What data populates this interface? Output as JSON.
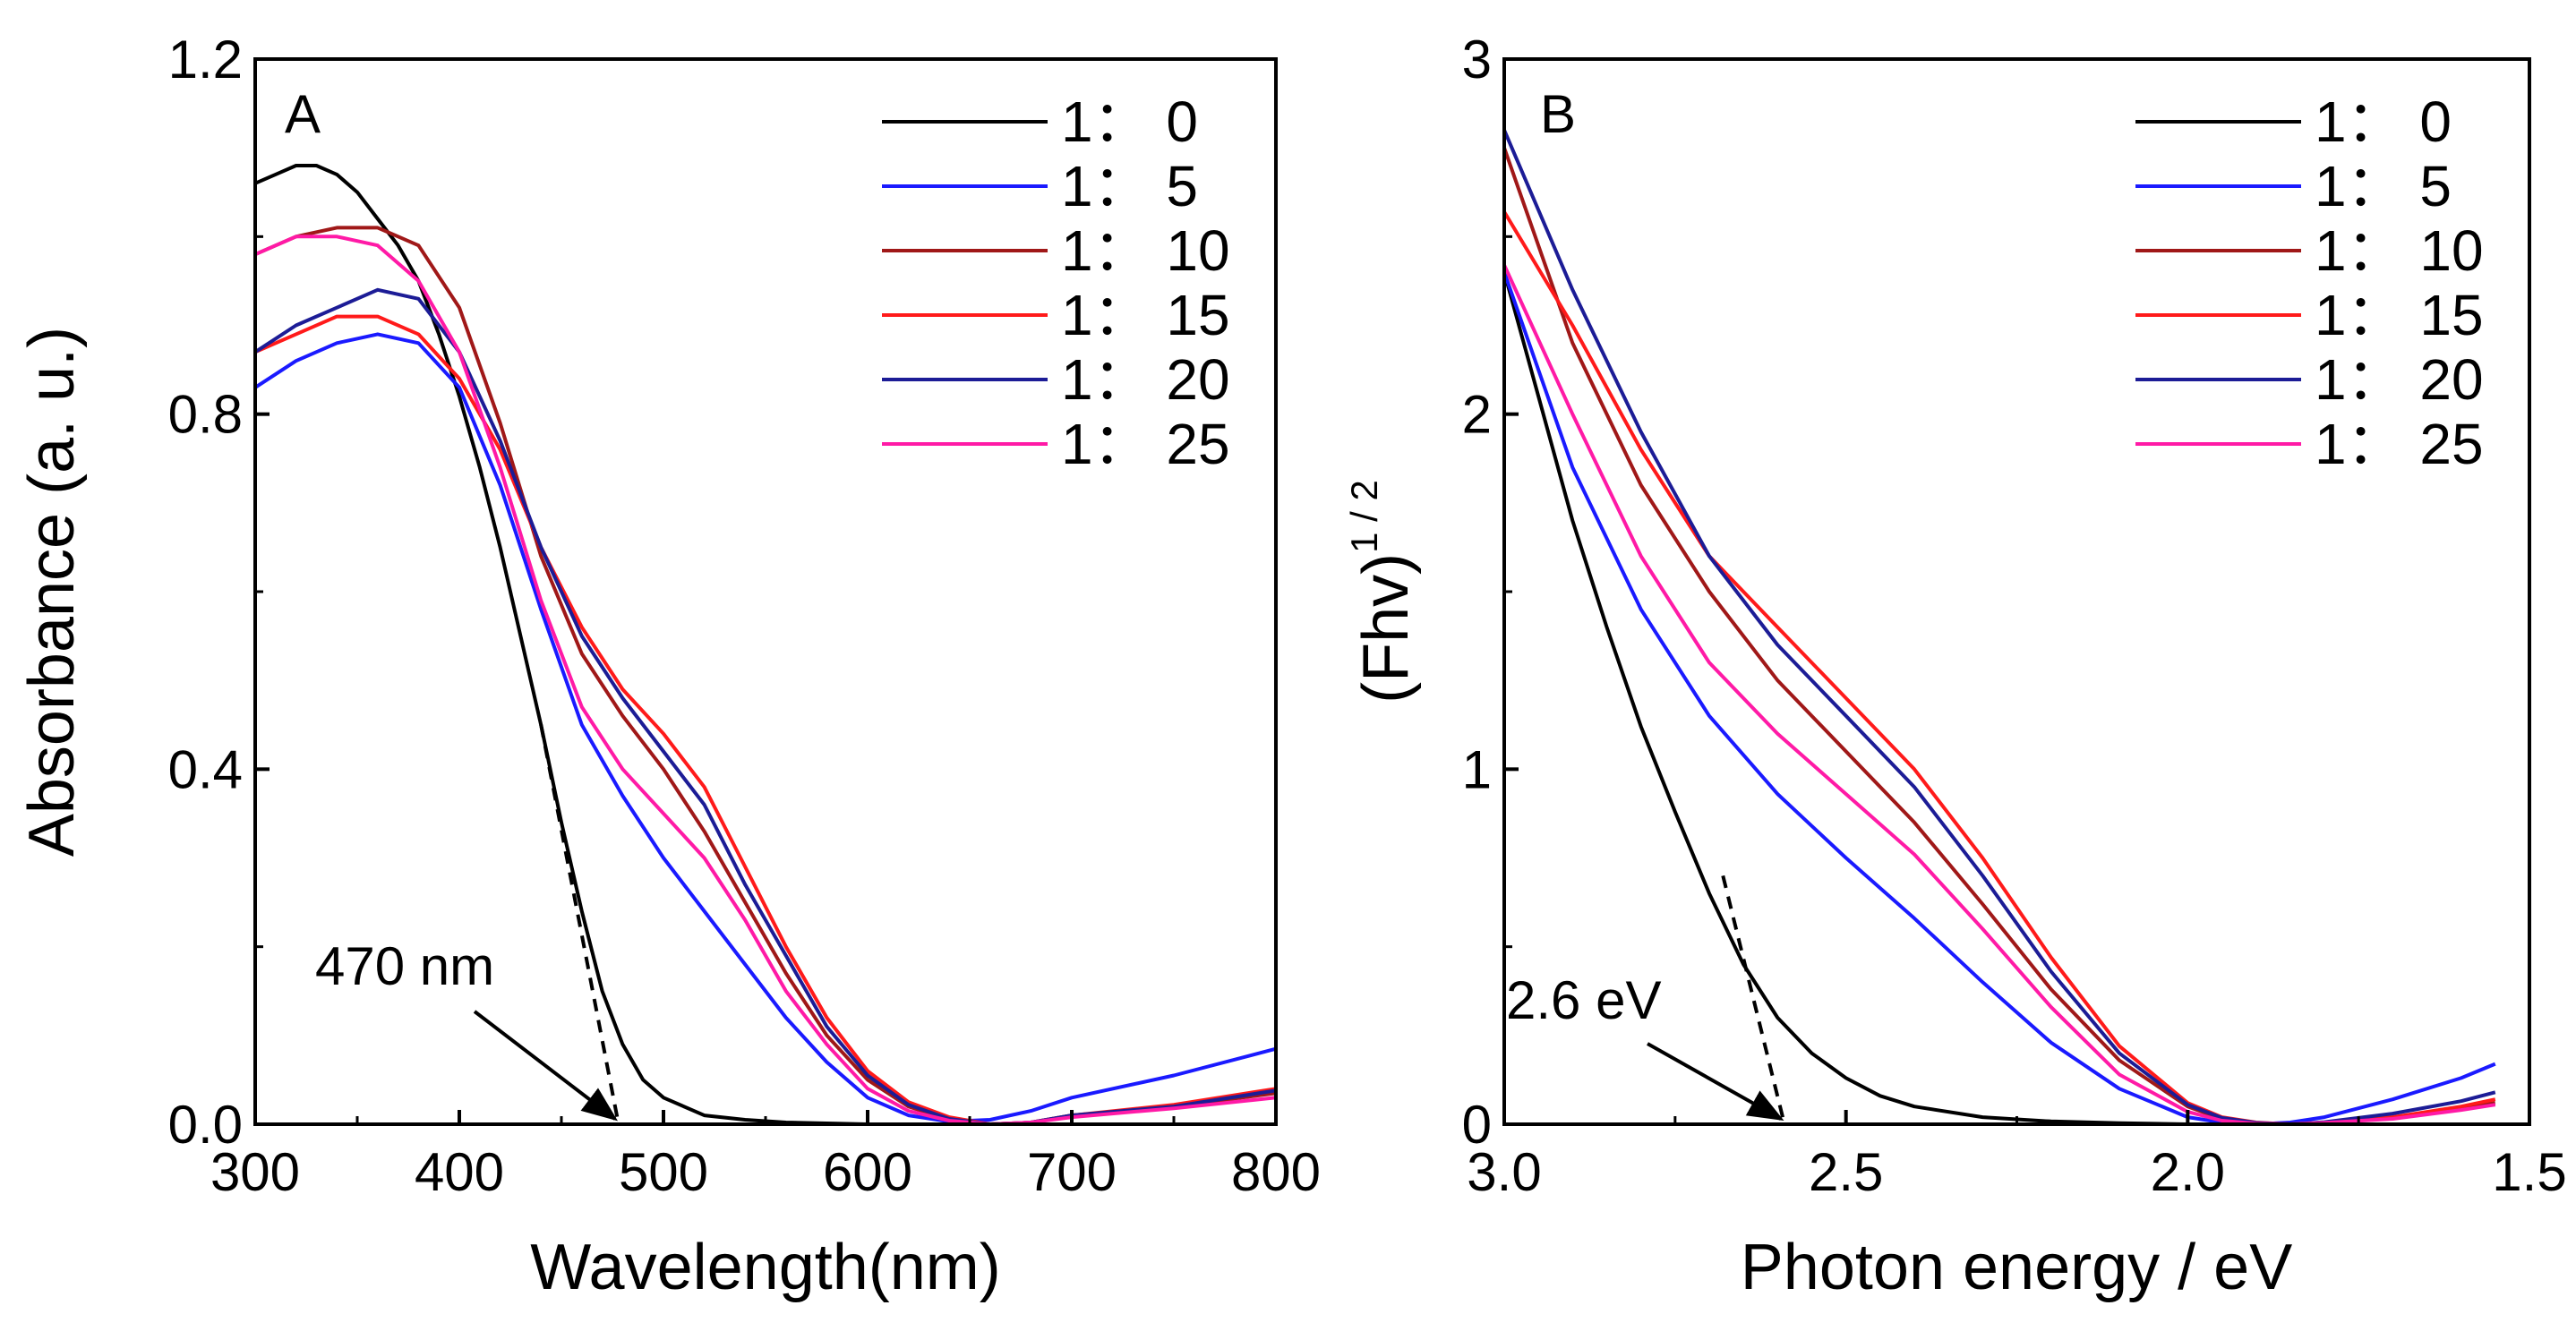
{
  "colors": {
    "1:0": "#000000",
    "1:5": "#1a1aff",
    "1:10": "#a01818",
    "1:15": "#ff1a1a",
    "1:20": "#1c1c96",
    "1:25": "#ff1aa6"
  },
  "chart_data": [
    {
      "type": "line",
      "panel_label": "A",
      "xlabel": "Wavelength(nm)",
      "ylabel": "Absorbance (a. u.)",
      "xlim": [
        300,
        800
      ],
      "ylim": [
        0,
        1.2
      ],
      "xticks": [
        300,
        400,
        500,
        600,
        700,
        800
      ],
      "xtick_labels": [
        "300",
        "400",
        "500",
        "600",
        "700",
        "800"
      ],
      "yticks": [
        0.0,
        0.4,
        0.8,
        1.2
      ],
      "ytick_labels": [
        "0.0",
        "0.4",
        "0.8",
        "1.2"
      ],
      "legend": [
        "1： 0",
        "1： 5",
        "1： 10",
        "1： 15",
        "1： 20",
        "1： 25"
      ],
      "legend_position": "top-right",
      "annotation": {
        "text": "470 nm",
        "arrow_to": [
          478,
          0.0
        ]
      },
      "tangent_line": {
        "from": [
          440,
          0.45
        ],
        "to": [
          478,
          0.0
        ]
      },
      "series": [
        {
          "name": "1： 0",
          "key": "1:0",
          "x": [
            300,
            310,
            320,
            330,
            340,
            350,
            360,
            370,
            380,
            390,
            400,
            410,
            420,
            430,
            440,
            450,
            460,
            470,
            480,
            490,
            500,
            520,
            540,
            560,
            600,
            650,
            700,
            750,
            800
          ],
          "y": [
            1.06,
            1.07,
            1.08,
            1.08,
            1.07,
            1.05,
            1.02,
            0.99,
            0.95,
            0.89,
            0.82,
            0.74,
            0.65,
            0.55,
            0.45,
            0.34,
            0.24,
            0.15,
            0.09,
            0.05,
            0.03,
            0.01,
            0.005,
            0.002,
            0.0,
            0.0,
            0.0,
            0.0,
            0.0
          ]
        },
        {
          "name": "1： 5",
          "key": "1:5",
          "x": [
            300,
            320,
            340,
            360,
            380,
            400,
            420,
            440,
            460,
            480,
            500,
            520,
            540,
            560,
            580,
            600,
            620,
            640,
            660,
            680,
            700,
            750,
            800
          ],
          "y": [
            0.83,
            0.86,
            0.88,
            0.89,
            0.88,
            0.83,
            0.72,
            0.58,
            0.45,
            0.37,
            0.3,
            0.24,
            0.18,
            0.12,
            0.07,
            0.03,
            0.01,
            0.003,
            0.005,
            0.015,
            0.03,
            0.055,
            0.085
          ]
        },
        {
          "name": "1： 10",
          "key": "1:10",
          "x": [
            300,
            320,
            340,
            360,
            380,
            400,
            420,
            440,
            460,
            480,
            500,
            520,
            540,
            560,
            580,
            600,
            620,
            640,
            660,
            680,
            700,
            750,
            800
          ],
          "y": [
            0.98,
            1.0,
            1.01,
            1.01,
            0.99,
            0.92,
            0.79,
            0.64,
            0.53,
            0.46,
            0.4,
            0.33,
            0.25,
            0.17,
            0.1,
            0.05,
            0.02,
            0.005,
            0.0,
            0.002,
            0.01,
            0.02,
            0.035
          ]
        },
        {
          "name": "1： 15",
          "key": "1:15",
          "x": [
            300,
            320,
            340,
            360,
            380,
            400,
            420,
            440,
            460,
            480,
            500,
            520,
            540,
            560,
            580,
            600,
            620,
            640,
            660,
            680,
            700,
            750,
            800
          ],
          "y": [
            0.87,
            0.89,
            0.91,
            0.91,
            0.89,
            0.84,
            0.76,
            0.65,
            0.56,
            0.49,
            0.44,
            0.38,
            0.29,
            0.2,
            0.12,
            0.06,
            0.025,
            0.008,
            0.0,
            0.002,
            0.01,
            0.022,
            0.04
          ]
        },
        {
          "name": "1： 20",
          "key": "1:20",
          "x": [
            300,
            320,
            340,
            360,
            380,
            400,
            420,
            440,
            460,
            480,
            500,
            520,
            540,
            560,
            580,
            600,
            620,
            640,
            660,
            680,
            700,
            750,
            800
          ],
          "y": [
            0.87,
            0.9,
            0.92,
            0.94,
            0.93,
            0.87,
            0.77,
            0.65,
            0.55,
            0.48,
            0.42,
            0.36,
            0.27,
            0.19,
            0.11,
            0.055,
            0.022,
            0.006,
            0.0,
            0.002,
            0.01,
            0.02,
            0.038
          ]
        },
        {
          "name": "1： 25",
          "key": "1:25",
          "x": [
            300,
            320,
            340,
            360,
            380,
            400,
            420,
            440,
            460,
            480,
            500,
            520,
            540,
            560,
            580,
            600,
            620,
            640,
            660,
            680,
            700,
            750,
            800
          ],
          "y": [
            0.98,
            1.0,
            1.0,
            0.99,
            0.95,
            0.87,
            0.74,
            0.59,
            0.47,
            0.4,
            0.35,
            0.3,
            0.23,
            0.15,
            0.09,
            0.04,
            0.015,
            0.004,
            0.0,
            0.002,
            0.008,
            0.018,
            0.03
          ]
        }
      ]
    },
    {
      "type": "line",
      "panel_label": "B",
      "xlabel": "Photon energy / eV",
      "ylabel": "(Fhv)",
      "ylabel_superscript": "1 / 2",
      "xlim": [
        3.0,
        1.5
      ],
      "ylim": [
        0,
        3
      ],
      "xticks": [
        3.0,
        2.5,
        2.0,
        1.5
      ],
      "xtick_labels": [
        "3.0",
        "2.5",
        "2.0",
        "1.5"
      ],
      "yticks": [
        0,
        1,
        2,
        3
      ],
      "ytick_labels": [
        "0",
        "1",
        "2",
        "3"
      ],
      "legend": [
        "1： 0",
        "1： 5",
        "1： 10",
        "1： 15",
        "1： 20",
        "1： 25"
      ],
      "legend_position": "top-right",
      "annotation": {
        "text": "2.6 eV",
        "arrow_to": [
          2.59,
          0.0
        ]
      },
      "tangent_line": {
        "from": [
          2.68,
          0.7
        ],
        "to": [
          2.59,
          0.0
        ]
      },
      "series": [
        {
          "name": "1： 0",
          "key": "1:0",
          "x": [
            3.0,
            2.95,
            2.9,
            2.85,
            2.8,
            2.75,
            2.7,
            2.65,
            2.6,
            2.55,
            2.5,
            2.45,
            2.4,
            2.3,
            2.2,
            2.1,
            2.0,
            1.9,
            1.8,
            1.7,
            1.6,
            1.55
          ],
          "y": [
            2.4,
            2.05,
            1.7,
            1.4,
            1.12,
            0.88,
            0.65,
            0.45,
            0.3,
            0.2,
            0.13,
            0.08,
            0.05,
            0.02,
            0.008,
            0.003,
            0.0,
            0.0,
            0.0,
            0.0,
            0.0,
            0.0
          ]
        },
        {
          "name": "1： 5",
          "key": "1:5",
          "x": [
            3.0,
            2.9,
            2.8,
            2.7,
            2.6,
            2.5,
            2.4,
            2.3,
            2.2,
            2.1,
            2.0,
            1.95,
            1.9,
            1.85,
            1.8,
            1.7,
            1.6,
            1.55
          ],
          "y": [
            2.4,
            1.85,
            1.45,
            1.15,
            0.93,
            0.75,
            0.58,
            0.4,
            0.23,
            0.1,
            0.02,
            0.005,
            0.0,
            0.005,
            0.02,
            0.07,
            0.13,
            0.17
          ]
        },
        {
          "name": "1： 10",
          "key": "1:10",
          "x": [
            3.0,
            2.9,
            2.8,
            2.7,
            2.6,
            2.5,
            2.4,
            2.3,
            2.2,
            2.1,
            2.0,
            1.95,
            1.9,
            1.85,
            1.8,
            1.7,
            1.6,
            1.55
          ],
          "y": [
            2.75,
            2.2,
            1.8,
            1.5,
            1.25,
            1.05,
            0.85,
            0.62,
            0.38,
            0.18,
            0.05,
            0.015,
            0.003,
            0.0,
            0.005,
            0.02,
            0.045,
            0.06
          ]
        },
        {
          "name": "1： 15",
          "key": "1:15",
          "x": [
            3.0,
            2.9,
            2.8,
            2.7,
            2.6,
            2.5,
            2.4,
            2.3,
            2.2,
            2.1,
            2.0,
            1.95,
            1.9,
            1.85,
            1.8,
            1.7,
            1.6,
            1.55
          ],
          "y": [
            2.57,
            2.25,
            1.9,
            1.6,
            1.4,
            1.2,
            1.0,
            0.75,
            0.47,
            0.22,
            0.06,
            0.02,
            0.005,
            0.0,
            0.005,
            0.02,
            0.05,
            0.07
          ]
        },
        {
          "name": "1： 20",
          "key": "1:20",
          "x": [
            3.0,
            2.9,
            2.8,
            2.7,
            2.6,
            2.5,
            2.4,
            2.3,
            2.2,
            2.1,
            2.0,
            1.95,
            1.9,
            1.85,
            1.8,
            1.7,
            1.6,
            1.55
          ],
          "y": [
            2.8,
            2.35,
            1.95,
            1.6,
            1.35,
            1.15,
            0.95,
            0.7,
            0.43,
            0.2,
            0.055,
            0.018,
            0.004,
            0.0,
            0.006,
            0.03,
            0.065,
            0.09
          ]
        },
        {
          "name": "1： 25",
          "key": "1:25",
          "x": [
            3.0,
            2.9,
            2.8,
            2.7,
            2.6,
            2.5,
            2.4,
            2.3,
            2.2,
            2.1,
            2.0,
            1.95,
            1.9,
            1.85,
            1.8,
            1.7,
            1.6,
            1.55
          ],
          "y": [
            2.42,
            2.0,
            1.6,
            1.3,
            1.1,
            0.93,
            0.76,
            0.55,
            0.33,
            0.14,
            0.035,
            0.01,
            0.002,
            0.0,
            0.004,
            0.015,
            0.04,
            0.055
          ]
        }
      ]
    }
  ]
}
